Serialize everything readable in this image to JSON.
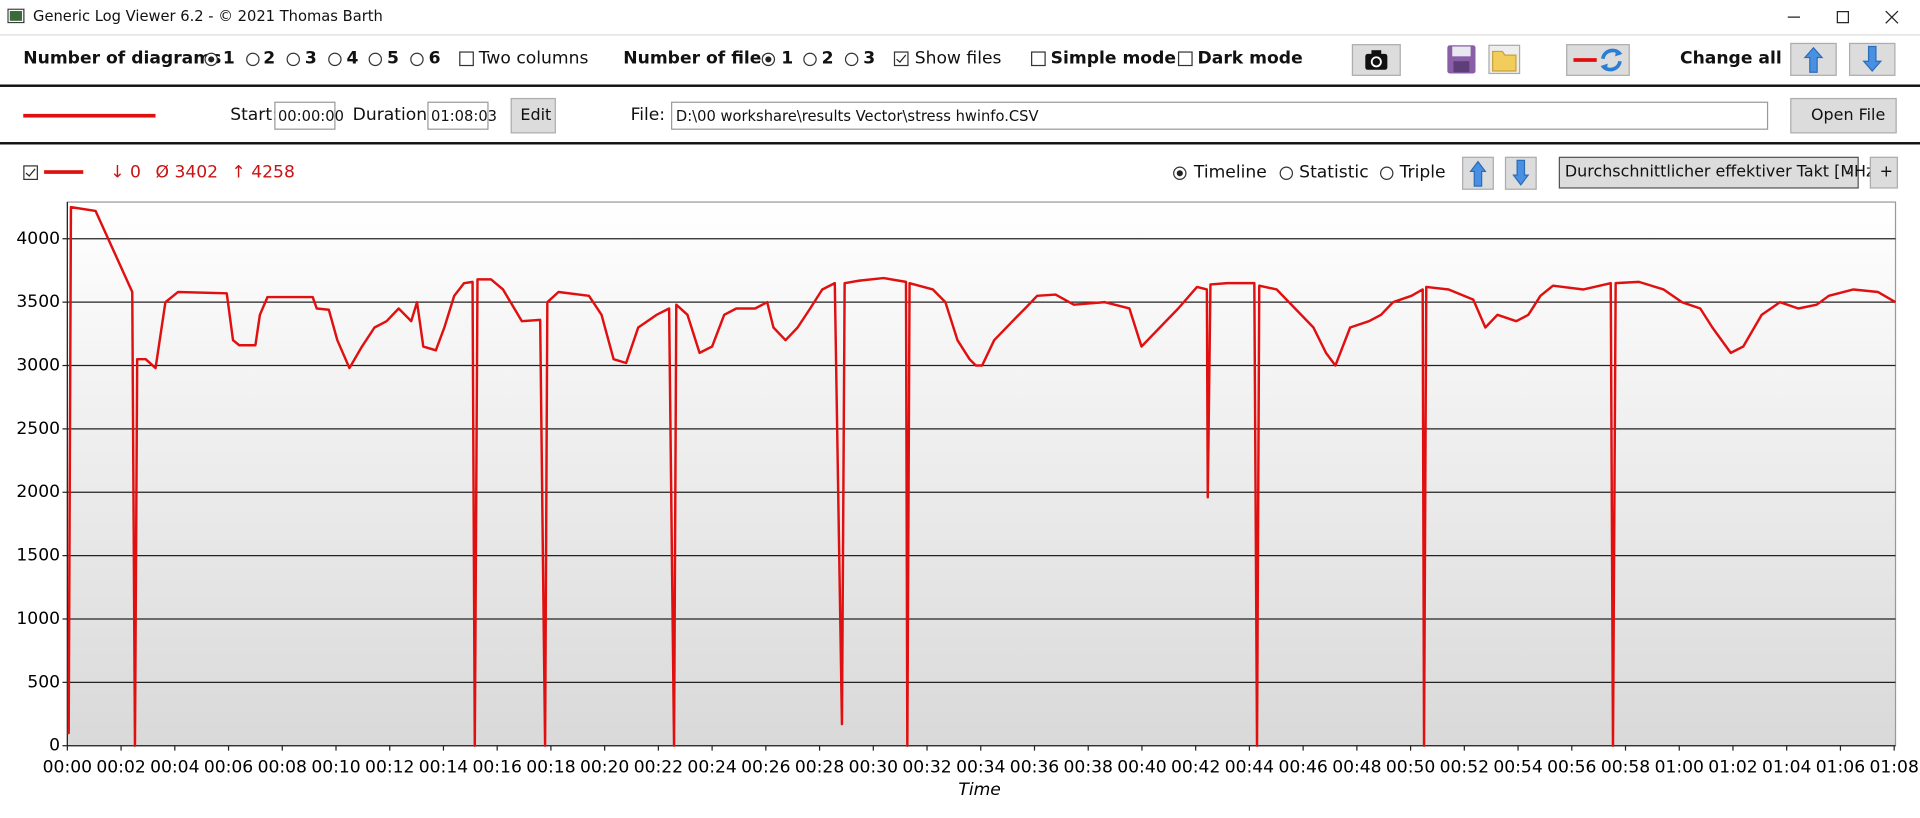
{
  "window": {
    "title": "Generic Log Viewer 6.2 - © 2021 Thomas Barth"
  },
  "toolbar": {
    "diagrams_label": "Number of diagrams",
    "diagram_options": [
      "1",
      "2",
      "3",
      "4",
      "5",
      "6"
    ],
    "two_columns": "Two columns",
    "files_label": "Number of files",
    "file_options": [
      "1",
      "2",
      "3"
    ],
    "show_files": "Show files",
    "simple_mode": "Simple mode",
    "dark_mode": "Dark mode",
    "change_all": "Change all"
  },
  "file_bar": {
    "start_label": "Start:",
    "start": "00:00:00",
    "duration_label": "Duration:",
    "duration": "01:08:03",
    "edit": "Edit",
    "file_label": "File:",
    "file": "D:\\00 workshare\\results Vector\\stress hwinfo.CSV",
    "open_file": "Open File"
  },
  "diagram_bar": {
    "min": "↓ 0",
    "avg": "Ø 3402",
    "max": "↑ 4258",
    "modes": [
      "Timeline",
      "Statistic",
      "Triple"
    ],
    "channel": "Durchschnittlicher effektiver Takt [MHz]",
    "add": "+"
  },
  "chart_data": {
    "type": "line",
    "xlabel": "Time",
    "color": "#e01010",
    "grid": true,
    "x": [
      0,
      3,
      8,
      63,
      145,
      151,
      156,
      175,
      197,
      219,
      247,
      356,
      370,
      384,
      420,
      430,
      447,
      548,
      557,
      584,
      603,
      630,
      658,
      686,
      713,
      740,
      768,
      781,
      795,
      823,
      842,
      864,
      886,
      905,
      910,
      916,
      946,
      973,
      1015,
      1056,
      1067,
      1072,
      1097,
      1165,
      1193,
      1220,
      1248,
      1275,
      1316,
      1344,
      1355,
      1360,
      1385,
      1412,
      1440,
      1467,
      1494,
      1536,
      1563,
      1577,
      1604,
      1631,
      1659,
      1686,
      1714,
      1730,
      1736,
      1769,
      1823,
      1873,
      1876,
      1881,
      1933,
      1961,
      1988,
      2015,
      2029,
      2043,
      2070,
      2111,
      2139,
      2166,
      2207,
      2248,
      2317,
      2372,
      2399,
      2440,
      2481,
      2523,
      2545,
      2547,
      2553,
      2591,
      2651,
      2657,
      2662,
      2701,
      2742,
      2783,
      2811,
      2832,
      2865,
      2907,
      2934,
      2961,
      3002,
      3027,
      3030,
      3035,
      3085,
      3140,
      3167,
      3194,
      3236,
      3263,
      3290,
      3318,
      3386,
      3447,
      3452,
      3458,
      3510,
      3565,
      3606,
      3647,
      3674,
      3715,
      3743,
      3784,
      3825,
      3866,
      3907,
      3934,
      3989,
      4044,
      4083
    ],
    "values": [
      100,
      100,
      4250,
      4220,
      3580,
      0,
      3050,
      3050,
      2980,
      3500,
      3580,
      3570,
      3200,
      3160,
      3160,
      3400,
      3540,
      3540,
      3450,
      3440,
      3200,
      2980,
      3150,
      3300,
      3350,
      3450,
      3350,
      3500,
      3150,
      3120,
      3300,
      3550,
      3650,
      3660,
      0,
      3680,
      3680,
      3600,
      3350,
      3360,
      0,
      3500,
      3580,
      3550,
      3400,
      3050,
      3020,
      3300,
      3400,
      3450,
      0,
      3480,
      3400,
      3100,
      3150,
      3400,
      3450,
      3450,
      3500,
      3300,
      3200,
      3300,
      3450,
      3600,
      3650,
      170,
      3650,
      3670,
      3690,
      3660,
      0,
      3650,
      3600,
      3500,
      3200,
      3050,
      3000,
      3000,
      3200,
      3350,
      3450,
      3550,
      3560,
      3480,
      3500,
      3450,
      3150,
      3300,
      3450,
      3620,
      3600,
      1960,
      3640,
      3650,
      3650,
      0,
      3630,
      3600,
      3450,
      3300,
      3100,
      3000,
      3300,
      3350,
      3400,
      3500,
      3550,
      3600,
      0,
      3620,
      3600,
      3520,
      3300,
      3400,
      3350,
      3400,
      3550,
      3630,
      3600,
      3650,
      0,
      3650,
      3660,
      3600,
      3500,
      3450,
      3300,
      3100,
      3150,
      3400,
      3500,
      3450,
      3480,
      3550,
      3600,
      3580,
      3500
    ],
    "xlim": [
      0,
      4083
    ],
    "ylim": [
      0,
      4290
    ],
    "yticks": [
      0,
      500,
      1000,
      1500,
      2000,
      2500,
      3000,
      3500,
      4000
    ],
    "xticks": [
      {
        "value": 0,
        "label": "00:00"
      },
      {
        "value": 120,
        "label": "00:02"
      },
      {
        "value": 240,
        "label": "00:04"
      },
      {
        "value": 360,
        "label": "00:06"
      },
      {
        "value": 480,
        "label": "00:08"
      },
      {
        "value": 600,
        "label": "00:10"
      },
      {
        "value": 720,
        "label": "00:12"
      },
      {
        "value": 840,
        "label": "00:14"
      },
      {
        "value": 960,
        "label": "00:16"
      },
      {
        "value": 1080,
        "label": "00:18"
      },
      {
        "value": 1200,
        "label": "00:20"
      },
      {
        "value": 1320,
        "label": "00:22"
      },
      {
        "value": 1440,
        "label": "00:24"
      },
      {
        "value": 1560,
        "label": "00:26"
      },
      {
        "value": 1680,
        "label": "00:28"
      },
      {
        "value": 1800,
        "label": "00:30"
      },
      {
        "value": 1920,
        "label": "00:32"
      },
      {
        "value": 2040,
        "label": "00:34"
      },
      {
        "value": 2160,
        "label": "00:36"
      },
      {
        "value": 2280,
        "label": "00:38"
      },
      {
        "value": 2400,
        "label": "00:40"
      },
      {
        "value": 2520,
        "label": "00:42"
      },
      {
        "value": 2640,
        "label": "00:44"
      },
      {
        "value": 2760,
        "label": "00:46"
      },
      {
        "value": 2880,
        "label": "00:48"
      },
      {
        "value": 3000,
        "label": "00:50"
      },
      {
        "value": 3120,
        "label": "00:52"
      },
      {
        "value": 3240,
        "label": "00:54"
      },
      {
        "value": 3360,
        "label": "00:56"
      },
      {
        "value": 3480,
        "label": "00:58"
      },
      {
        "value": 3600,
        "label": "01:00"
      },
      {
        "value": 3720,
        "label": "01:02"
      },
      {
        "value": 3840,
        "label": "01:04"
      },
      {
        "value": 3960,
        "label": "01:06"
      },
      {
        "value": 4080,
        "label": "01:08"
      }
    ]
  }
}
